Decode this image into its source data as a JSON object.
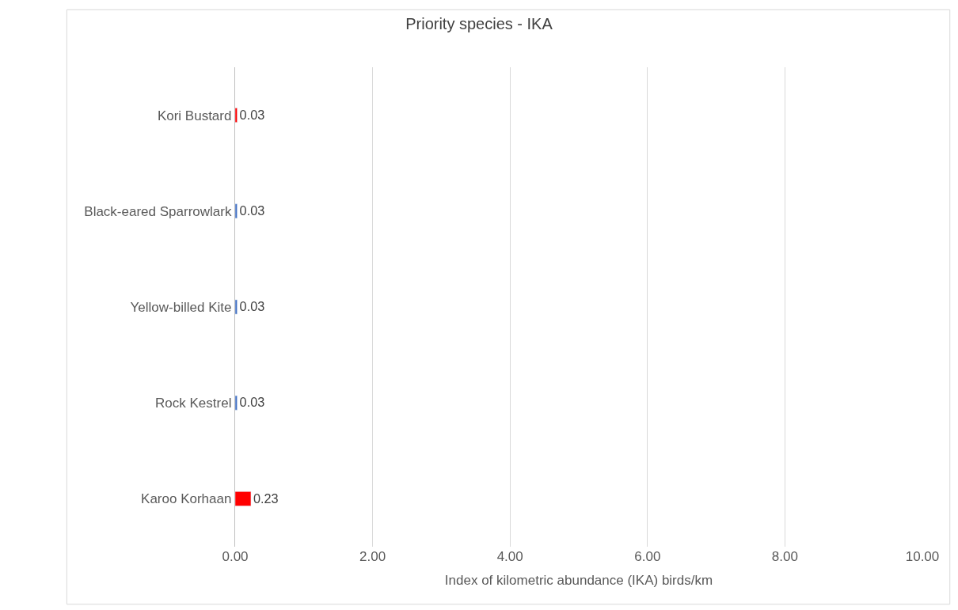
{
  "chart_data": {
    "type": "bar",
    "orientation": "horizontal",
    "title": "Priority species - IKA",
    "xlabel": "Index of kilometric abundance (IKA) birds/km",
    "categories": [
      "Kori Bustard",
      "Black-eared Sparrowlark",
      "Yellow-billed Kite",
      "Rock Kestrel",
      "Karoo Korhaan"
    ],
    "values": [
      0.03,
      0.03,
      0.03,
      0.03,
      0.23
    ],
    "colors": [
      "#ff0000",
      "#4472c4",
      "#4472c4",
      "#4472c4",
      "#ff0000"
    ],
    "value_labels": [
      "0.03",
      "0.03",
      "0.03",
      "0.03",
      "0.23"
    ],
    "xlim": [
      0,
      10
    ],
    "xticks": [
      {
        "value": 0,
        "label": "0.00"
      },
      {
        "value": 2,
        "label": "2.00"
      },
      {
        "value": 4,
        "label": "4.00"
      },
      {
        "value": 6,
        "label": "6.00"
      },
      {
        "value": 8,
        "label": "8.00"
      },
      {
        "value": 10,
        "label": "10.00"
      }
    ],
    "grid": "x"
  }
}
